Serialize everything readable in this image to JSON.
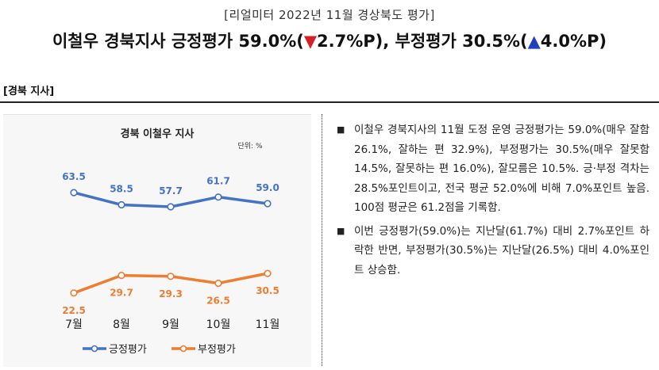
{
  "header": {
    "subtitle": "[리얼미터 2022년 11월 경상북도 평가]",
    "title_pre": "이철우 경북지사 긍정평가 59.0%(",
    "down_mark": "▼",
    "down_val": "2.7%P",
    "title_mid": "), 부정평가 30.5%(",
    "up_mark": "▲",
    "up_val": "4.0%P",
    "title_post": ")",
    "down_color": "#d61f26",
    "up_color": "#1f3fbf"
  },
  "section": {
    "label": "[경북 지사]"
  },
  "chart_data": {
    "type": "line",
    "title": "경북 이철우 지사",
    "unit": "단위: %",
    "categories": [
      "7월",
      "8월",
      "9월",
      "10월",
      "11월"
    ],
    "series": [
      {
        "name": "긍정평가",
        "values": [
          63.5,
          58.5,
          57.7,
          61.7,
          59.0
        ],
        "color": "#4472c4"
      },
      {
        "name": "부정평가",
        "values": [
          22.5,
          29.7,
          29.3,
          26.5,
          30.5
        ],
        "color": "#ed7d31"
      }
    ],
    "ylim": [
      15,
      70
    ],
    "grid": false,
    "legend": "bottom"
  },
  "bullets": {
    "mark": "■",
    "items": [
      "이철우 경북지사의 11월 도정 운영 긍정평가는 59.0%(매우 잘함 26.1%, 잘하는 편 32.9%), 부정평가는 30.5%(매우 잘못함 14.5%, 잘못하는 편 16.0%), 잘모름은 10.5%. 긍·부정 격차는 28.5%포인트이고, 전국 평균 52.0%에 비해 7.0%포인트 높음. 100점 평균은 61.2점을 기록함.",
      "이번 긍정평가(59.0%)는 지난달(61.7%) 대비 2.7%포인트 하락한 반면, 부정평가(30.5%)는 지난달(26.5%) 대비 4.0%포인트 상승함."
    ]
  }
}
